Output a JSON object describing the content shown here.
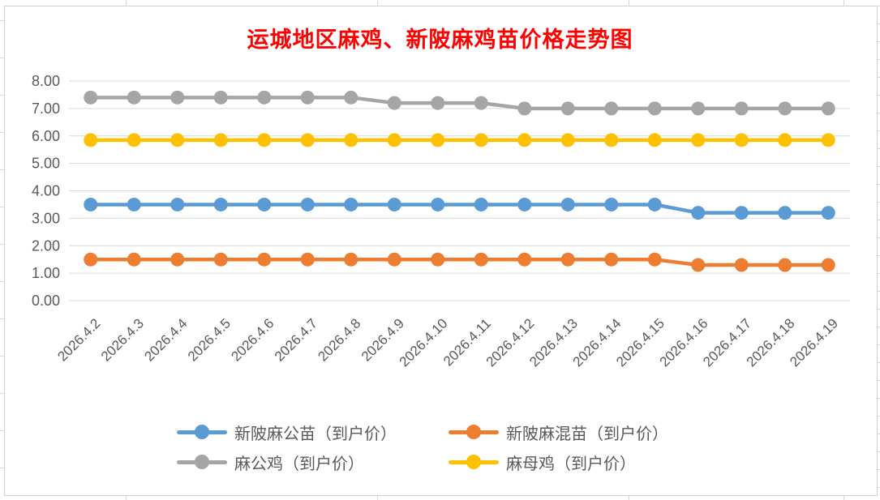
{
  "chart_data": {
    "type": "line",
    "title": "运城地区麻鸡、新陂麻鸡苗价格走势图",
    "categories": [
      "2026.4.2",
      "2026.4.3",
      "2026.4.4",
      "2026.4.5",
      "2026.4.6",
      "2026.4.7",
      "2026.4.8",
      "2026.4.9",
      "2026.4.10",
      "2026.4.11",
      "2026.4.12",
      "2026.4.13",
      "2026.4.14",
      "2026.4.15",
      "2026.4.16",
      "2026.4.17",
      "2026.4.18",
      "2026.4.19"
    ],
    "series": [
      {
        "name": "新陂麻公苗（到户价）",
        "color": "#5B9BD5",
        "values": [
          3.5,
          3.5,
          3.5,
          3.5,
          3.5,
          3.5,
          3.5,
          3.5,
          3.5,
          3.5,
          3.5,
          3.5,
          3.5,
          3.5,
          3.2,
          3.2,
          3.2,
          3.2
        ]
      },
      {
        "name": "新陂麻混苗（到户价）",
        "color": "#ED7D31",
        "values": [
          1.5,
          1.5,
          1.5,
          1.5,
          1.5,
          1.5,
          1.5,
          1.5,
          1.5,
          1.5,
          1.5,
          1.5,
          1.5,
          1.5,
          1.3,
          1.3,
          1.3,
          1.3
        ]
      },
      {
        "name": "麻公鸡（到户价）",
        "color": "#A5A5A5",
        "values": [
          7.4,
          7.4,
          7.4,
          7.4,
          7.4,
          7.4,
          7.4,
          7.2,
          7.2,
          7.2,
          7.0,
          7.0,
          7.0,
          7.0,
          7.0,
          7.0,
          7.0,
          7.0
        ]
      },
      {
        "name": "麻母鸡（到户价）",
        "color": "#FFC000",
        "values": [
          5.85,
          5.85,
          5.85,
          5.85,
          5.85,
          5.85,
          5.85,
          5.85,
          5.85,
          5.85,
          5.85,
          5.85,
          5.85,
          5.85,
          5.85,
          5.85,
          5.85,
          5.85
        ]
      }
    ],
    "ylim": [
      0,
      8
    ],
    "yticks": [
      8,
      7,
      6,
      5,
      4,
      3,
      2,
      1,
      0
    ],
    "ytick_labels": [
      "8.00",
      "7.00",
      "6.00",
      "5.00",
      "4.00",
      "3.00",
      "2.00",
      "1.00",
      "0.00"
    ],
    "grid": true,
    "legend_position": "bottom",
    "colors": {
      "title": "#FF0000",
      "axis_labels": "#595959",
      "gridline": "#D9D9D9",
      "chart_border": "#D2D2D2"
    }
  }
}
